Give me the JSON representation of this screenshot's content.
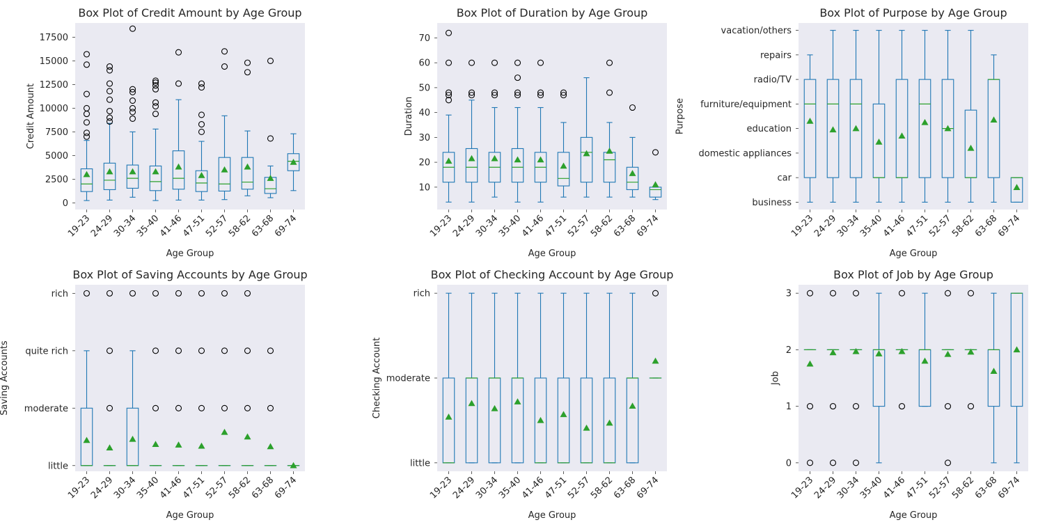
{
  "colors": {
    "panel_bg": "#EAEAF2",
    "box": "#1F77B4",
    "median": "#2CA02C",
    "mean_marker": "#2CA02C",
    "flier": "#000000"
  },
  "chart_data": [
    {
      "type": "box",
      "title": "Box Plot of Credit Amount by Age Group",
      "xlabel": "Age Group",
      "ylabel": "Credit Amount",
      "categorical": false,
      "ylim": [
        -700,
        19000
      ],
      "yticks": [
        0,
        2500,
        5000,
        7500,
        10000,
        12500,
        15000,
        17500
      ],
      "categories": [
        "19-23",
        "24-29",
        "30-34",
        "35-40",
        "41-46",
        "47-51",
        "52-57",
        "58-62",
        "63-68",
        "69-74"
      ],
      "boxes": [
        {
          "q1": 1200,
          "median": 2000,
          "q3": 3600,
          "whislo": 250,
          "whishi": 6600,
          "mean": 3000,
          "fliers": [
            7000,
            7400,
            8500,
            9400,
            10000,
            11500,
            14600,
            15700
          ]
        },
        {
          "q1": 1400,
          "median": 2400,
          "q3": 4200,
          "whislo": 300,
          "whishi": 8400,
          "mean": 3300,
          "fliers": [
            8600,
            9000,
            9700,
            10900,
            11800,
            12600,
            14000,
            14400
          ]
        },
        {
          "q1": 1550,
          "median": 2600,
          "q3": 4000,
          "whislo": 600,
          "whishi": 7500,
          "mean": 3300,
          "fliers": [
            8900,
            9600,
            10000,
            10800,
            11700,
            12000,
            18400
          ]
        },
        {
          "q1": 1300,
          "median": 2250,
          "q3": 3900,
          "whislo": 250,
          "whishi": 7800,
          "mean": 3300,
          "fliers": [
            9400,
            10200,
            10600,
            12000,
            12400,
            12700,
            12900
          ]
        },
        {
          "q1": 1450,
          "median": 2600,
          "q3": 5500,
          "whislo": 300,
          "whishi": 10900,
          "mean": 3800,
          "fliers": [
            12600,
            15900
          ]
        },
        {
          "q1": 1200,
          "median": 2100,
          "q3": 3400,
          "whislo": 300,
          "whishi": 6500,
          "mean": 2900,
          "fliers": [
            7500,
            8300,
            9300,
            12200,
            12600
          ]
        },
        {
          "q1": 1250,
          "median": 2000,
          "q3": 4800,
          "whislo": 350,
          "whishi": 9200,
          "mean": 3500,
          "fliers": [
            14400,
            16000
          ]
        },
        {
          "q1": 1450,
          "median": 2200,
          "q3": 4800,
          "whislo": 750,
          "whishi": 7600,
          "mean": 3800,
          "fliers": [
            13800,
            14800
          ]
        },
        {
          "q1": 1000,
          "median": 1500,
          "q3": 2700,
          "whislo": 550,
          "whishi": 3900,
          "mean": 2600,
          "fliers": [
            6800,
            15000
          ]
        },
        {
          "q1": 3400,
          "median": 4400,
          "q3": 5200,
          "whislo": 1300,
          "whishi": 7300,
          "mean": 4300,
          "fliers": []
        }
      ]
    },
    {
      "type": "box",
      "title": "Box Plot of Duration by Age Group",
      "xlabel": "Age Group",
      "ylabel": "Duration",
      "categorical": false,
      "ylim": [
        1,
        76
      ],
      "yticks": [
        10,
        20,
        30,
        40,
        50,
        60,
        70
      ],
      "categories": [
        "19-23",
        "24-29",
        "30-34",
        "35-40",
        "41-46",
        "47-51",
        "52-57",
        "58-62",
        "63-68",
        "69-74"
      ],
      "boxes": [
        {
          "q1": 12,
          "median": 18,
          "q3": 24,
          "whislo": 4,
          "whishi": 39,
          "mean": 20.5,
          "fliers": [
            45,
            47,
            48,
            60,
            72
          ]
        },
        {
          "q1": 12,
          "median": 18,
          "q3": 25.5,
          "whislo": 4,
          "whishi": 45,
          "mean": 21.5,
          "fliers": [
            47,
            48,
            60
          ]
        },
        {
          "q1": 12,
          "median": 18,
          "q3": 24,
          "whislo": 6,
          "whishi": 42,
          "mean": 21.5,
          "fliers": [
            47,
            48,
            60
          ]
        },
        {
          "q1": 12,
          "median": 18,
          "q3": 25.5,
          "whislo": 4,
          "whishi": 42,
          "mean": 21,
          "fliers": [
            47,
            48,
            54,
            60
          ]
        },
        {
          "q1": 12,
          "median": 18,
          "q3": 24,
          "whislo": 4,
          "whishi": 42,
          "mean": 21,
          "fliers": [
            47,
            48,
            60
          ]
        },
        {
          "q1": 10.5,
          "median": 13.5,
          "q3": 24,
          "whislo": 6,
          "whishi": 36,
          "mean": 18.5,
          "fliers": [
            47,
            48
          ]
        },
        {
          "q1": 12,
          "median": 24,
          "q3": 30,
          "whislo": 6,
          "whishi": 54,
          "mean": 23.5,
          "fliers": []
        },
        {
          "q1": 12,
          "median": 21,
          "q3": 24,
          "whislo": 6,
          "whishi": 36,
          "mean": 24.5,
          "fliers": [
            48,
            60
          ]
        },
        {
          "q1": 9,
          "median": 12,
          "q3": 18,
          "whislo": 6,
          "whishi": 30,
          "mean": 15.5,
          "fliers": [
            42
          ]
        },
        {
          "q1": 6,
          "median": 9,
          "q3": 10,
          "whislo": 5,
          "whishi": 10,
          "mean": 11,
          "fliers": [
            24
          ]
        }
      ]
    },
    {
      "type": "box",
      "title": "Box Plot of Purpose by Age Group",
      "xlabel": "Age Group",
      "ylabel": "Purpose",
      "categorical": true,
      "ylim": [
        -0.3,
        7.3
      ],
      "yticks": [
        0,
        1,
        2,
        3,
        4,
        5,
        6,
        7
      ],
      "ytick_labels": [
        "business",
        "car",
        "domestic appliances",
        "education",
        "furniture/equipment",
        "radio/TV",
        "repairs",
        "vacation/others"
      ],
      "categories": [
        "19-23",
        "24-29",
        "30-34",
        "35-40",
        "41-46",
        "47-51",
        "52-57",
        "58-62",
        "63-68",
        "69-74"
      ],
      "boxes": [
        {
          "q1": 1,
          "median": 4,
          "q3": 5,
          "whislo": 0,
          "whishi": 6,
          "mean": 3.3,
          "fliers": []
        },
        {
          "q1": 1,
          "median": 4,
          "q3": 5,
          "whislo": 0,
          "whishi": 7,
          "mean": 2.95,
          "fliers": []
        },
        {
          "q1": 1,
          "median": 4,
          "q3": 5,
          "whislo": 0,
          "whishi": 7,
          "mean": 3.0,
          "fliers": []
        },
        {
          "q1": 1,
          "median": 1,
          "q3": 4,
          "whislo": 0,
          "whishi": 7,
          "mean": 2.45,
          "fliers": []
        },
        {
          "q1": 1,
          "median": 1,
          "q3": 5,
          "whislo": 0,
          "whishi": 7,
          "mean": 2.7,
          "fliers": []
        },
        {
          "q1": 1,
          "median": 4,
          "q3": 5,
          "whislo": 0,
          "whishi": 7,
          "mean": 3.25,
          "fliers": []
        },
        {
          "q1": 1,
          "median": 3,
          "q3": 5,
          "whislo": 0,
          "whishi": 7,
          "mean": 3.0,
          "fliers": []
        },
        {
          "q1": 1,
          "median": 1,
          "q3": 3.75,
          "whislo": 0,
          "whishi": 7,
          "mean": 2.2,
          "fliers": []
        },
        {
          "q1": 1,
          "median": 5,
          "q3": 5,
          "whislo": 0,
          "whishi": 6,
          "mean": 3.35,
          "fliers": []
        },
        {
          "q1": 0,
          "median": 1,
          "q3": 1,
          "whislo": 0,
          "whishi": 1,
          "mean": 0.6,
          "fliers": []
        }
      ]
    },
    {
      "type": "box",
      "title": "Box Plot of Saving Accounts by Age Group",
      "xlabel": "Age Group",
      "ylabel": "Saving Accounts",
      "categorical": true,
      "ylim": [
        -0.1,
        3.15
      ],
      "yticks": [
        0,
        1,
        2,
        3
      ],
      "ytick_labels": [
        "little",
        "moderate",
        "quite rich",
        "rich"
      ],
      "categories": [
        "19-23",
        "24-29",
        "30-34",
        "35-40",
        "41-46",
        "47-51",
        "52-57",
        "58-62",
        "63-68",
        "69-74"
      ],
      "boxes": [
        {
          "q1": 0,
          "median": 0,
          "q3": 1,
          "whislo": 0,
          "whishi": 2,
          "mean": 0.44,
          "fliers": [
            3
          ]
        },
        {
          "q1": 0,
          "median": 0,
          "q3": 0,
          "whislo": 0,
          "whishi": 0,
          "mean": 0.31,
          "fliers": [
            1,
            2,
            3
          ]
        },
        {
          "q1": 0,
          "median": 0,
          "q3": 1,
          "whislo": 0,
          "whishi": 2,
          "mean": 0.46,
          "fliers": [
            3
          ]
        },
        {
          "q1": 0,
          "median": 0,
          "q3": 0,
          "whislo": 0,
          "whishi": 0,
          "mean": 0.37,
          "fliers": [
            1,
            2,
            3
          ]
        },
        {
          "q1": 0,
          "median": 0,
          "q3": 0,
          "whislo": 0,
          "whishi": 0,
          "mean": 0.36,
          "fliers": [
            1,
            2,
            3
          ]
        },
        {
          "q1": 0,
          "median": 0,
          "q3": 0,
          "whislo": 0,
          "whishi": 0,
          "mean": 0.34,
          "fliers": [
            1,
            2,
            3
          ]
        },
        {
          "q1": 0,
          "median": 0,
          "q3": 0,
          "whislo": 0,
          "whishi": 0,
          "mean": 0.58,
          "fliers": [
            1,
            2,
            3
          ]
        },
        {
          "q1": 0,
          "median": 0,
          "q3": 0,
          "whislo": 0,
          "whishi": 0,
          "mean": 0.5,
          "fliers": [
            1,
            2,
            3
          ]
        },
        {
          "q1": 0,
          "median": 0,
          "q3": 0,
          "whislo": 0,
          "whishi": 0,
          "mean": 0.33,
          "fliers": [
            1,
            2
          ]
        },
        {
          "q1": 0,
          "median": 0,
          "q3": 0,
          "whislo": 0,
          "whishi": 0,
          "mean": 0.0,
          "fliers": []
        }
      ]
    },
    {
      "type": "box",
      "title": "Box Plot of Checking Account by Age Group",
      "xlabel": "Age Group",
      "ylabel": "Checking Account",
      "categorical": true,
      "ylim": [
        -0.1,
        2.1
      ],
      "yticks": [
        0,
        1,
        2
      ],
      "ytick_labels": [
        "little",
        "moderate",
        "rich"
      ],
      "categories": [
        "19-23",
        "24-29",
        "30-34",
        "35-40",
        "41-46",
        "47-51",
        "52-57",
        "58-62",
        "63-68",
        "69-74"
      ],
      "boxes": [
        {
          "q1": 0,
          "median": 0,
          "q3": 1,
          "whislo": 0,
          "whishi": 2,
          "mean": 0.54,
          "fliers": []
        },
        {
          "q1": 0,
          "median": 1,
          "q3": 1,
          "whislo": 0,
          "whishi": 2,
          "mean": 0.7,
          "fliers": []
        },
        {
          "q1": 0,
          "median": 1,
          "q3": 1,
          "whislo": 0,
          "whishi": 2,
          "mean": 0.64,
          "fliers": []
        },
        {
          "q1": 0,
          "median": 1,
          "q3": 1,
          "whislo": 0,
          "whishi": 2,
          "mean": 0.72,
          "fliers": []
        },
        {
          "q1": 0,
          "median": 0,
          "q3": 1,
          "whislo": 0,
          "whishi": 2,
          "mean": 0.5,
          "fliers": []
        },
        {
          "q1": 0,
          "median": 0,
          "q3": 1,
          "whislo": 0,
          "whishi": 2,
          "mean": 0.57,
          "fliers": []
        },
        {
          "q1": 0,
          "median": 0,
          "q3": 1,
          "whislo": 0,
          "whishi": 2,
          "mean": 0.41,
          "fliers": []
        },
        {
          "q1": 0,
          "median": 0,
          "q3": 1,
          "whislo": 0,
          "whishi": 2,
          "mean": 0.47,
          "fliers": []
        },
        {
          "q1": 0,
          "median": 1,
          "q3": 1,
          "whislo": 0,
          "whishi": 2,
          "mean": 0.67,
          "fliers": []
        },
        {
          "q1": 1,
          "median": 1,
          "q3": 1,
          "whislo": 1,
          "whishi": 1,
          "mean": 1.2,
          "fliers": [
            2
          ]
        }
      ]
    },
    {
      "type": "box",
      "title": "Box Plot of Job by Age Group",
      "xlabel": "Age Group",
      "ylabel": "Job",
      "categorical": false,
      "ylim": [
        -0.15,
        3.15
      ],
      "yticks": [
        0,
        1,
        2,
        3
      ],
      "categories": [
        "19-23",
        "24-29",
        "30-34",
        "35-40",
        "41-46",
        "47-51",
        "52-57",
        "58-62",
        "63-68",
        "69-74"
      ],
      "boxes": [
        {
          "q1": 2,
          "median": 2,
          "q3": 2,
          "whislo": 2,
          "whishi": 2,
          "mean": 1.75,
          "fliers": [
            0,
            1,
            3
          ]
        },
        {
          "q1": 2,
          "median": 2,
          "q3": 2,
          "whislo": 2,
          "whishi": 2,
          "mean": 1.95,
          "fliers": [
            0,
            1,
            3
          ]
        },
        {
          "q1": 2,
          "median": 2,
          "q3": 2,
          "whislo": 2,
          "whishi": 2,
          "mean": 1.97,
          "fliers": [
            0,
            1,
            3
          ]
        },
        {
          "q1": 1,
          "median": 2,
          "q3": 2,
          "whislo": 0,
          "whishi": 3,
          "mean": 1.93,
          "fliers": []
        },
        {
          "q1": 2,
          "median": 2,
          "q3": 2,
          "whislo": 2,
          "whishi": 2,
          "mean": 1.97,
          "fliers": [
            1,
            3
          ]
        },
        {
          "q1": 1,
          "median": 2,
          "q3": 2,
          "whislo": 1,
          "whishi": 3,
          "mean": 1.8,
          "fliers": []
        },
        {
          "q1": 2,
          "median": 2,
          "q3": 2,
          "whislo": 2,
          "whishi": 2,
          "mean": 1.92,
          "fliers": [
            0,
            1,
            3
          ]
        },
        {
          "q1": 2,
          "median": 2,
          "q3": 2,
          "whislo": 2,
          "whishi": 2,
          "mean": 1.96,
          "fliers": [
            1,
            3
          ]
        },
        {
          "q1": 1,
          "median": 2,
          "q3": 2,
          "whislo": 0,
          "whishi": 3,
          "mean": 1.62,
          "fliers": []
        },
        {
          "q1": 1,
          "median": 3,
          "q3": 3,
          "whislo": 0,
          "whishi": 3,
          "mean": 2.0,
          "fliers": []
        }
      ]
    }
  ]
}
